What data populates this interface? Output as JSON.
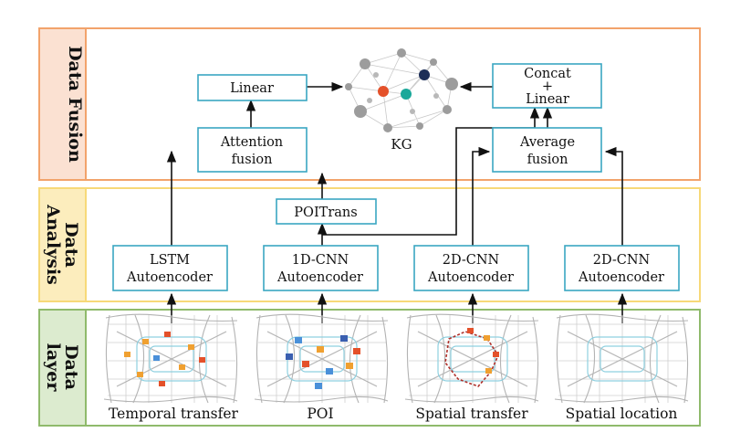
{
  "colors": {
    "fusion_border": "#f2a36b",
    "fusion_tab": "#fbe1d2",
    "analysis_border": "#f7d978",
    "analysis_tab": "#fcedbd",
    "data_border": "#8fba6b",
    "data_tab": "#dcebcf",
    "box_border": "#3aa6c2",
    "kg_red": "#e4512a",
    "kg_teal": "#1aa89a",
    "kg_navy": "#1c2e57",
    "kg_gray": "#9c9c9c"
  },
  "layers": {
    "fusion": {
      "label": "Data Fusion"
    },
    "analysis": {
      "label_lines": [
        "Data",
        "Analysis"
      ]
    },
    "data": {
      "label_lines": [
        "Data",
        "layer"
      ]
    }
  },
  "nodes": {
    "linear": {
      "label": "Linear"
    },
    "attention": {
      "lines": [
        "Attention",
        "fusion"
      ]
    },
    "concat": {
      "lines": [
        "Concat",
        "+",
        "Linear"
      ]
    },
    "average": {
      "lines": [
        "Average",
        "fusion"
      ]
    },
    "poitrans": {
      "label": "POITrans"
    },
    "lstm": {
      "lines": [
        "LSTM",
        "Autoencoder"
      ]
    },
    "cnn1d": {
      "lines": [
        "1D-CNN",
        "Autoencoder"
      ]
    },
    "cnn2d_a": {
      "lines": [
        "2D-CNN",
        "Autoencoder"
      ]
    },
    "cnn2d_b": {
      "lines": [
        "2D-CNN",
        "Autoencoder"
      ]
    }
  },
  "kg": {
    "label": "KG",
    "icon": "knowledge-graph-icon"
  },
  "maps": [
    {
      "label": "Temporal transfer",
      "icon": "city-map-icon"
    },
    {
      "label": "POI",
      "icon": "city-map-icon"
    },
    {
      "label": "Spatial transfer",
      "icon": "city-map-icon"
    },
    {
      "label": "Spatial location",
      "icon": "city-map-icon"
    }
  ]
}
